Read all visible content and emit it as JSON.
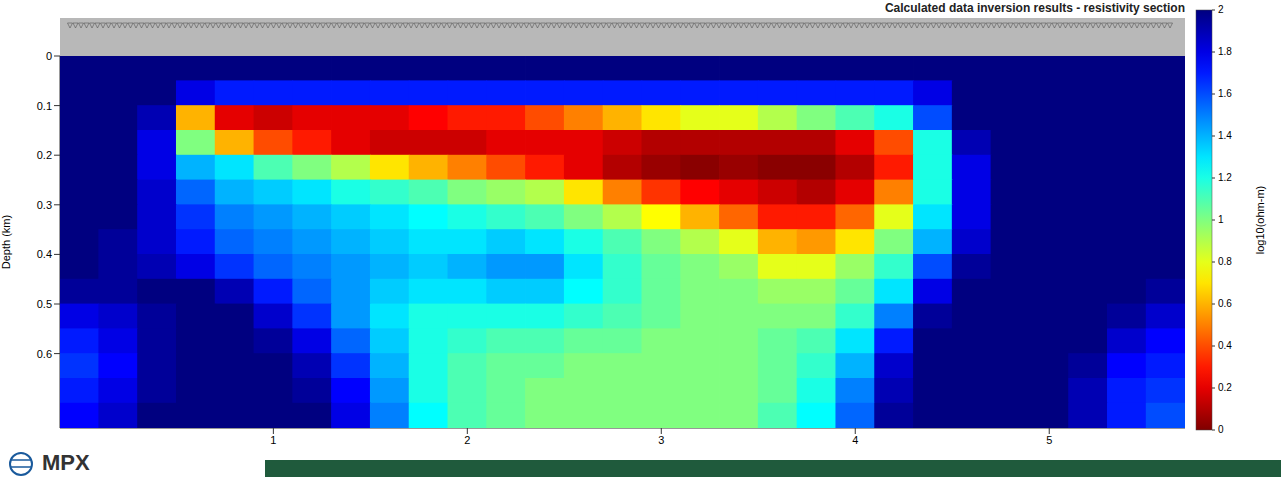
{
  "chart_data": {
    "type": "heatmap",
    "title": "Calculated data inversion results - resistivity section",
    "y_label": "Depth (km)",
    "logo": "MPX",
    "xlim": [
      -0.1,
      5.7
    ],
    "xticks": [
      1,
      2,
      3,
      4,
      5
    ],
    "ylim": [
      0,
      0.75
    ],
    "yticks": [
      0,
      0.1,
      0.2,
      0.3,
      0.4,
      0.5,
      0.6
    ],
    "cells": {
      "x": [
        0,
        0.2,
        0.4,
        0.6,
        0.8,
        1.0,
        1.2,
        1.4,
        1.6,
        1.8,
        2.0,
        2.2,
        2.4,
        2.6,
        2.8,
        3.0,
        3.2,
        3.4,
        3.6,
        3.8,
        4.0,
        4.2,
        4.4,
        4.6,
        4.8,
        5.0,
        5.2,
        5.4,
        5.6
      ],
      "depth": [
        0.025,
        0.075,
        0.125,
        0.175,
        0.225,
        0.275,
        0.325,
        0.375,
        0.425,
        0.475,
        0.525,
        0.575,
        0.625,
        0.675,
        0.725
      ],
      "values": [
        [
          2,
          2,
          2,
          2,
          2,
          2,
          2,
          2,
          2,
          2,
          2,
          2,
          2,
          2,
          2,
          2,
          2,
          2,
          2,
          2,
          2,
          2,
          2,
          2,
          2,
          2,
          2,
          2,
          2
        ],
        [
          2,
          2,
          2,
          1.8,
          1.7,
          1.7,
          1.7,
          1.7,
          1.7,
          1.7,
          1.7,
          1.7,
          1.7,
          1.7,
          1.7,
          1.7,
          1.7,
          1.7,
          1.7,
          1.7,
          1.7,
          1.7,
          1.8,
          2,
          2,
          2,
          2,
          2,
          2
        ],
        [
          2,
          2,
          1.9,
          0.6,
          0.2,
          0.15,
          0.2,
          0.2,
          0.2,
          0.25,
          0.3,
          0.3,
          0.4,
          0.5,
          0.6,
          0.7,
          0.8,
          0.8,
          0.9,
          1.0,
          1.1,
          1.2,
          1.6,
          2,
          2,
          2,
          2,
          2,
          2
        ],
        [
          2,
          2,
          1.8,
          1.0,
          0.6,
          0.4,
          0.3,
          0.2,
          0.15,
          0.15,
          0.15,
          0.2,
          0.2,
          0.2,
          0.15,
          0.1,
          0.1,
          0.1,
          0.1,
          0.1,
          0.2,
          0.4,
          1.2,
          1.9,
          2,
          2,
          2,
          2,
          2
        ],
        [
          2,
          2,
          1.8,
          1.4,
          1.3,
          1.1,
          1.0,
          0.9,
          0.7,
          0.6,
          0.5,
          0.4,
          0.3,
          0.2,
          0.1,
          0.05,
          0.02,
          0.05,
          0.02,
          0.02,
          0.1,
          0.3,
          1.2,
          1.8,
          2,
          2,
          2,
          2,
          2
        ],
        [
          2,
          2,
          1.85,
          1.55,
          1.4,
          1.35,
          1.3,
          1.2,
          1.15,
          1.1,
          1.0,
          0.95,
          0.9,
          0.7,
          0.5,
          0.35,
          0.25,
          0.2,
          0.15,
          0.1,
          0.2,
          0.5,
          1.2,
          1.8,
          2,
          2,
          2,
          2,
          2
        ],
        [
          2,
          2,
          1.85,
          1.65,
          1.5,
          1.45,
          1.4,
          1.35,
          1.3,
          1.25,
          1.2,
          1.15,
          1.1,
          1.0,
          0.9,
          0.75,
          0.6,
          0.45,
          0.3,
          0.3,
          0.45,
          0.8,
          1.3,
          1.8,
          2,
          2,
          2,
          2,
          2
        ],
        [
          2,
          1.95,
          1.85,
          1.7,
          1.55,
          1.5,
          1.45,
          1.4,
          1.35,
          1.3,
          1.3,
          1.35,
          1.3,
          1.2,
          1.1,
          1.0,
          0.9,
          0.8,
          0.6,
          0.55,
          0.7,
          1.0,
          1.4,
          1.85,
          2,
          2,
          2,
          2,
          2
        ],
        [
          2,
          1.95,
          1.9,
          1.8,
          1.65,
          1.55,
          1.5,
          1.45,
          1.4,
          1.35,
          1.4,
          1.45,
          1.45,
          1.3,
          1.15,
          1.05,
          1.0,
          0.95,
          0.8,
          0.8,
          0.95,
          1.15,
          1.6,
          1.95,
          2,
          2,
          2,
          2,
          2
        ],
        [
          1.95,
          1.95,
          2,
          2,
          1.9,
          1.7,
          1.55,
          1.45,
          1.35,
          1.3,
          1.3,
          1.35,
          1.35,
          1.25,
          1.15,
          1.05,
          1.0,
          1.0,
          0.95,
          0.95,
          1.05,
          1.3,
          1.8,
          2,
          2,
          2,
          2,
          2,
          1.95
        ],
        [
          1.8,
          1.85,
          1.95,
          2,
          2,
          1.85,
          1.65,
          1.45,
          1.3,
          1.2,
          1.2,
          1.2,
          1.2,
          1.15,
          1.1,
          1.05,
          1.0,
          1.0,
          1.0,
          1.0,
          1.15,
          1.5,
          1.95,
          2,
          2,
          2,
          2,
          1.95,
          1.85
        ],
        [
          1.7,
          1.8,
          1.95,
          2,
          2,
          1.95,
          1.8,
          1.55,
          1.35,
          1.2,
          1.15,
          1.1,
          1.1,
          1.05,
          1.05,
          1.0,
          1.0,
          1.0,
          1.05,
          1.1,
          1.3,
          1.7,
          2,
          2,
          2,
          2,
          2,
          1.85,
          1.75
        ],
        [
          1.65,
          1.75,
          1.95,
          2,
          2,
          2,
          1.9,
          1.65,
          1.4,
          1.2,
          1.1,
          1.05,
          1.05,
          1.0,
          1.0,
          1.0,
          1.0,
          1.0,
          1.05,
          1.15,
          1.4,
          1.85,
          2,
          2,
          2,
          2,
          1.95,
          1.75,
          1.7
        ],
        [
          1.7,
          1.8,
          1.95,
          2,
          2,
          2,
          1.95,
          1.75,
          1.45,
          1.2,
          1.1,
          1.05,
          1.0,
          1.0,
          1.0,
          1.0,
          1.0,
          1.0,
          1.05,
          1.2,
          1.5,
          1.9,
          2,
          2,
          2,
          2,
          1.9,
          1.7,
          1.65
        ],
        [
          1.75,
          1.85,
          2,
          2,
          2,
          2,
          2,
          1.8,
          1.5,
          1.25,
          1.1,
          1.05,
          1.0,
          1.0,
          1.0,
          1.0,
          1.0,
          1.0,
          1.1,
          1.25,
          1.55,
          1.95,
          2,
          2,
          2,
          2,
          1.9,
          1.7,
          1.6
        ]
      ]
    },
    "colorbar": {
      "label": "log10(ohm-m)",
      "range": [
        0,
        2
      ],
      "ticks": [
        0,
        0.2,
        0.4,
        0.6,
        0.8,
        1,
        1.2,
        1.4,
        1.6,
        1.8,
        2
      ]
    }
  }
}
